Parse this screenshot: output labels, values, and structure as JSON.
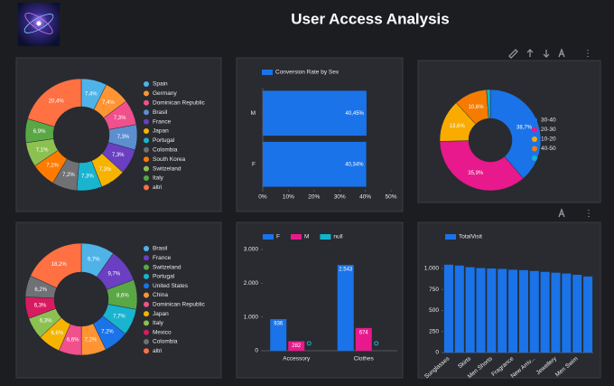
{
  "page_title": "User Access Analysis",
  "chart_data": [
    {
      "type": "donut",
      "categories": [
        "Spain",
        "Germany",
        "Dominican Republic",
        "Brasil",
        "France",
        "Japan",
        "Portugal",
        "Colombia",
        "South Korea",
        "Switzeland",
        "Italy",
        "altri"
      ],
      "values": [
        7.4,
        7.4,
        7.3,
        7.3,
        7.3,
        7.3,
        7.3,
        7.2,
        7.1,
        7.1,
        6.9,
        20.4
      ],
      "value_labels": [
        "7,4%",
        "7,4%",
        "7,3%",
        "7,3%",
        "7,3%",
        "7,3%",
        "7,3%",
        "7,2%",
        "7,1%",
        "7,1%",
        "6,9%",
        "20,4%"
      ],
      "colors": [
        "#4fb3e8",
        "#ff9433",
        "#f0508c",
        "#5b8fd0",
        "#6a3fc2",
        "#f6b400",
        "#19b4d0",
        "#6f7175",
        "#ff7b00",
        "#8cc152",
        "#5aa845",
        "#ff7043"
      ]
    },
    {
      "type": "hbar",
      "categories": [
        "M",
        "F"
      ],
      "series": [
        {
          "name": "Conversion Rate by Sex",
          "color": "#1a73e8",
          "values": [
            40.45,
            40.34
          ],
          "value_labels": [
            "40,45%",
            "40,34%"
          ]
        }
      ],
      "xlim": [
        0,
        50
      ],
      "xticks": [
        {
          "value": 0,
          "label": "0%"
        },
        {
          "value": 10,
          "label": "10%"
        },
        {
          "value": 20,
          "label": "20%"
        },
        {
          "value": 30,
          "label": "30%"
        },
        {
          "value": 40,
          "label": "40%"
        },
        {
          "value": 50,
          "label": "50%"
        }
      ]
    },
    {
      "type": "donut",
      "categories": [
        "30-40",
        "20-30",
        "10-20",
        "40-50",
        null
      ],
      "values": [
        38.7,
        35.9,
        13.6,
        10.6,
        1.2
      ],
      "value_labels": [
        "38,7%",
        "35,9%",
        "13,6%",
        "10,6%",
        null
      ],
      "colors": [
        "#1a73e8",
        "#e8198c",
        "#f9ab00",
        "#f57c00",
        "#12b5cb"
      ]
    },
    {
      "type": "donut",
      "categories": [
        "Brasil",
        "France",
        "Switzeland",
        "Portugal",
        "United States",
        "China",
        "Dominican Republic",
        "Japan",
        "Italy",
        "Mexico",
        "Colombia",
        "altri"
      ],
      "values": [
        9.7,
        9.7,
        8.6,
        7.7,
        7.2,
        7.2,
        6.6,
        6.6,
        6.3,
        6.3,
        6.2,
        18.2
      ],
      "value_labels": [
        "9,7%",
        "9,7%",
        "8,6%",
        "7,7%",
        "7,2%",
        "7,2%",
        "6,6%",
        "6,6%",
        "6,3%",
        "6,3%",
        "6,2%",
        "18,2%"
      ],
      "colors": [
        "#4fb3e8",
        "#6a3fc2",
        "#5aa845",
        "#19b4d0",
        "#1a73e8",
        "#ff9433",
        "#f0508c",
        "#f6b400",
        "#8cc152",
        "#d81b60",
        "#6f7175",
        "#ff7043"
      ]
    },
    {
      "type": "bar",
      "categories": [
        "Accessory",
        "Clothes"
      ],
      "series": [
        {
          "name": "F",
          "color": "#1a73e8",
          "values": [
            936,
            2543
          ],
          "value_labels": [
            "936",
            "2.543"
          ],
          "data_labels": true
        },
        {
          "name": "M",
          "color": "#e8198c",
          "values": [
            282,
            674
          ],
          "data_labels": true
        },
        {
          "name": "null",
          "color": "#12b5cb",
          "values": [
            5,
            5
          ],
          "marker": true
        }
      ],
      "ylim": [
        0,
        3000
      ],
      "yticks": [
        0,
        {
          "value": 1000,
          "label": "1.000"
        },
        {
          "value": 2000,
          "label": "2.000"
        },
        {
          "value": 3000,
          "label": "3.000"
        }
      ]
    },
    {
      "type": "bar",
      "categories": [
        "Sunglasses",
        null,
        "Skirts",
        null,
        "Men Shorts",
        null,
        "Fragrance",
        null,
        "New Arriv...",
        null,
        "Jewellery",
        null,
        "Men Swim",
        null
      ],
      "series": [
        {
          "name": "TotalVisit",
          "color": "#1a73e8",
          "values": [
            1045,
            1035,
            1015,
            1005,
            1000,
            995,
            985,
            980,
            970,
            960,
            950,
            940,
            925,
            905
          ]
        }
      ],
      "ylim": [
        0,
        1100
      ],
      "yticks": [
        0,
        250,
        500,
        750,
        {
          "value": 1000,
          "label": "1.000"
        }
      ],
      "rotate_labels": true
    }
  ]
}
